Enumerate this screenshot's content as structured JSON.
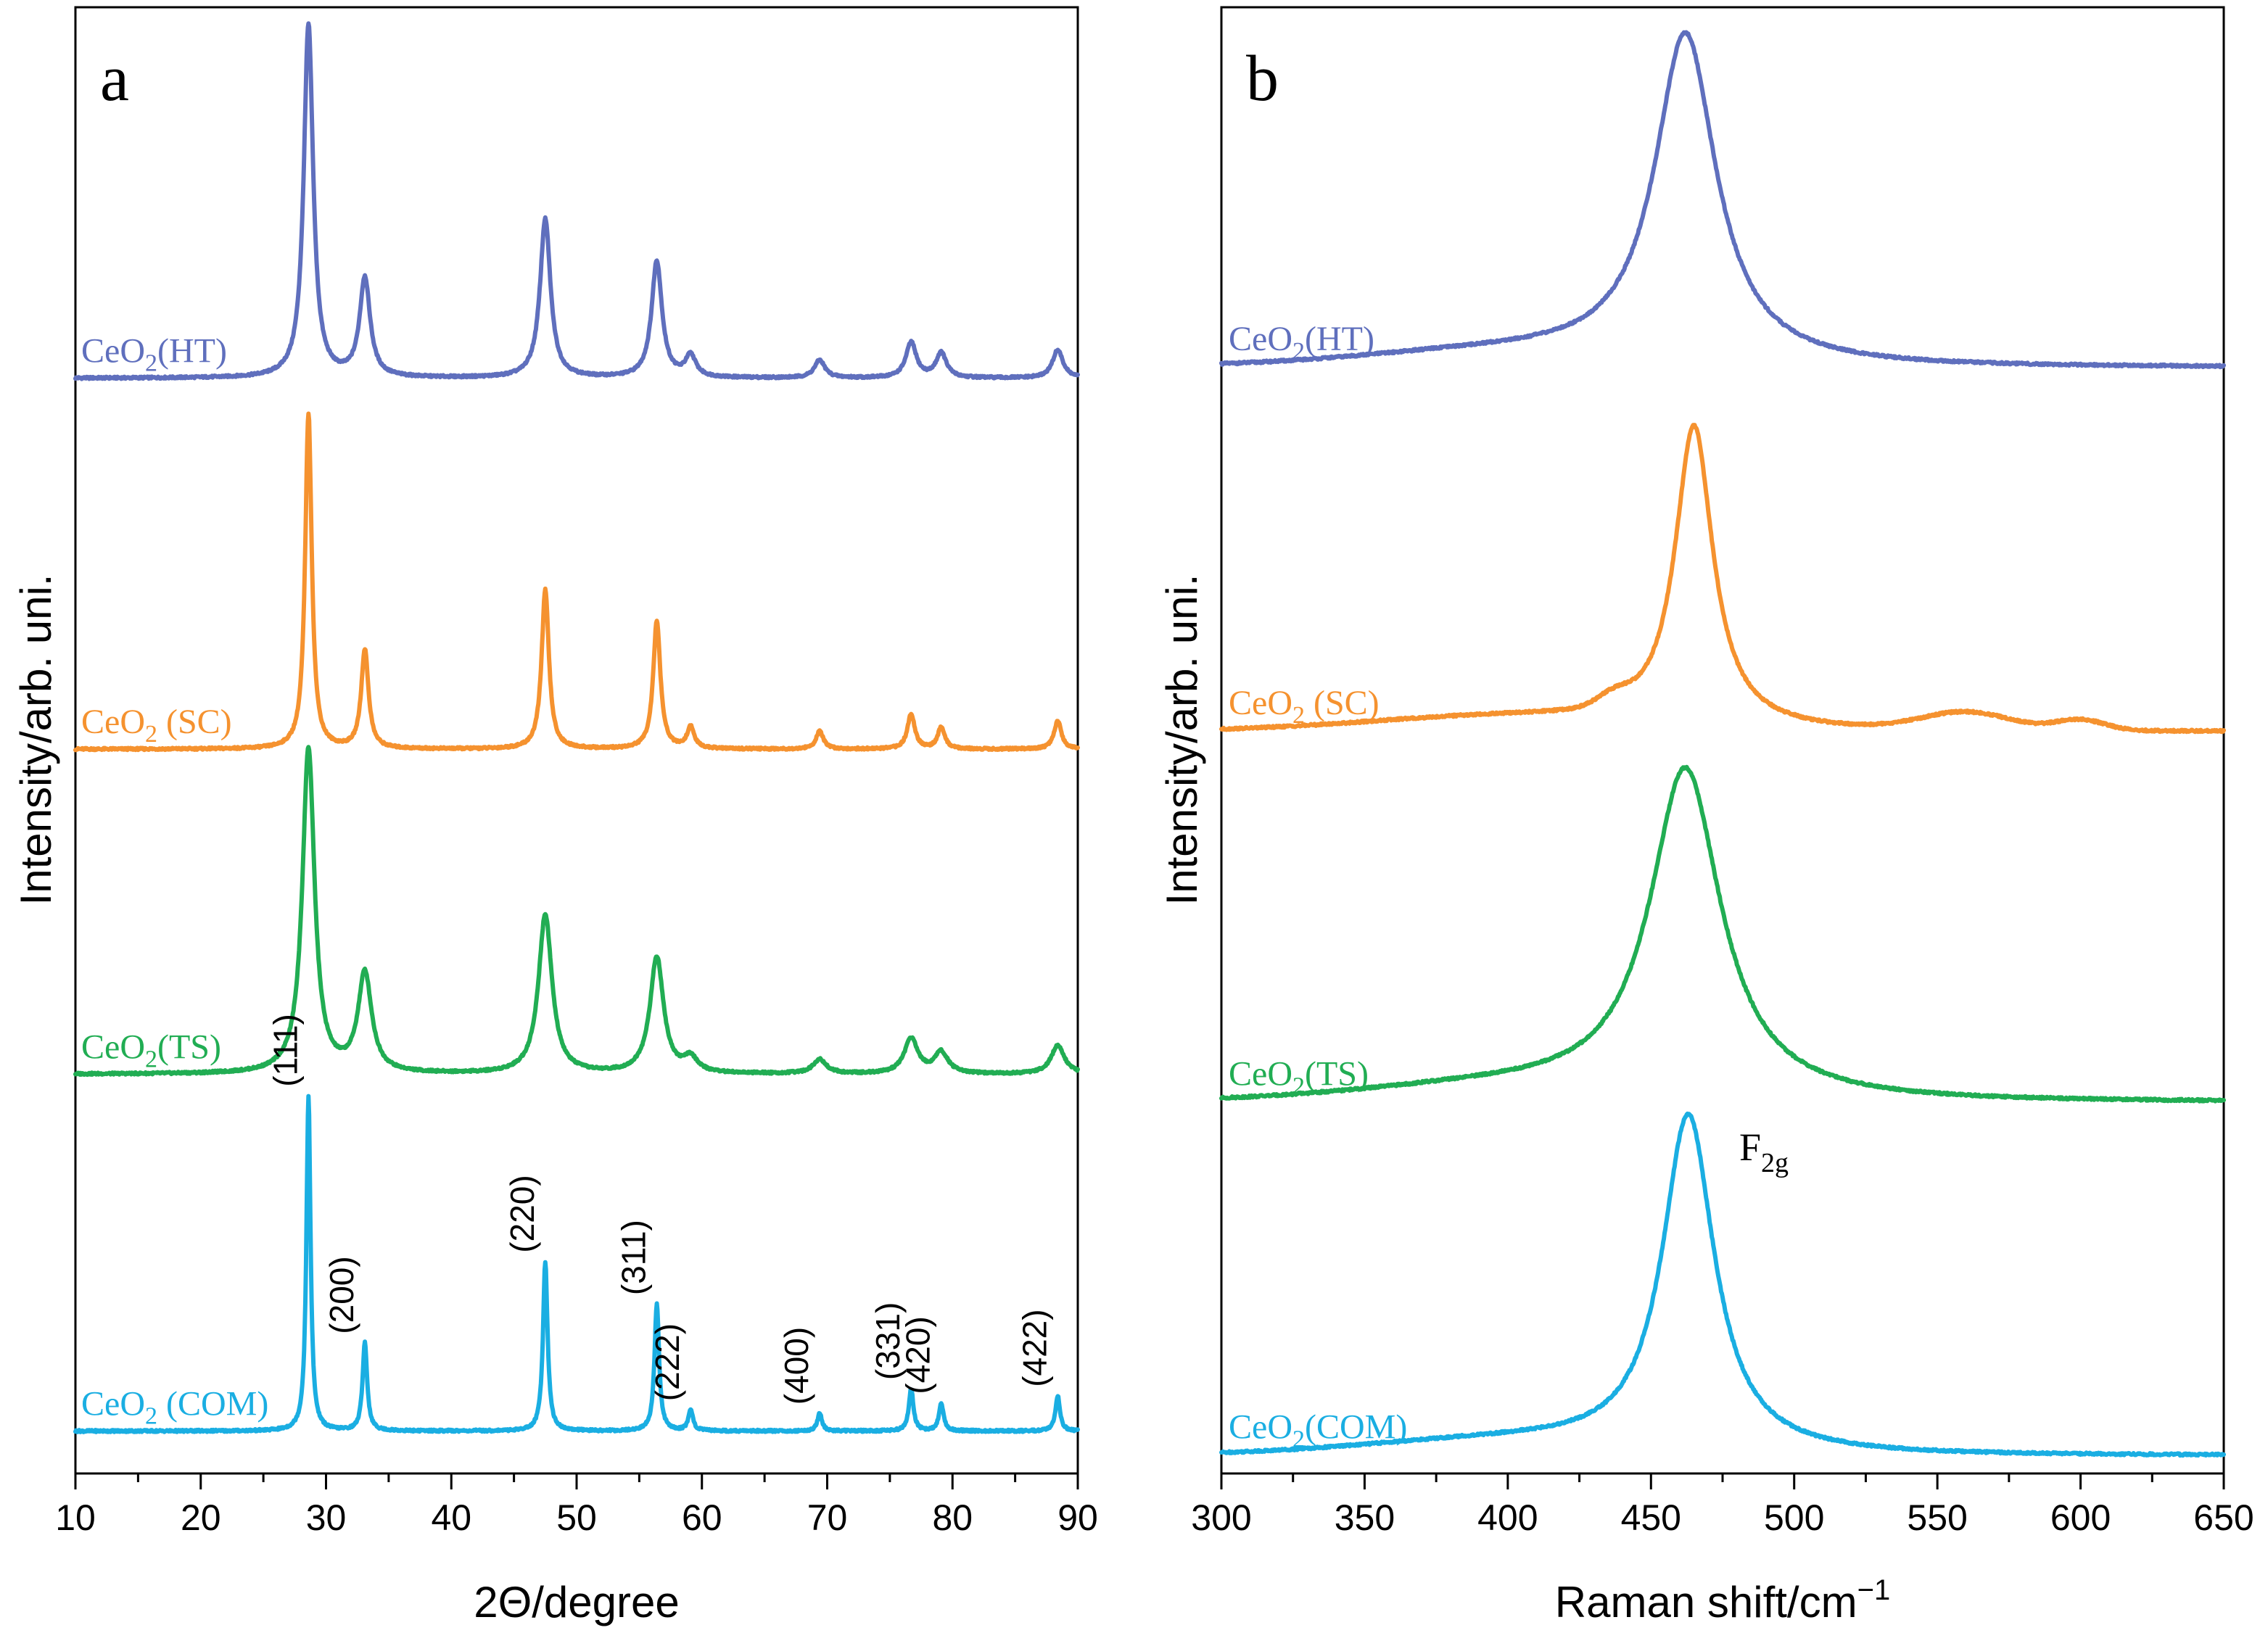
{
  "chart_data": [
    {
      "type": "line",
      "panel_letter": "a",
      "xlabel": "2Θ/degree",
      "ylabel": "Intensity/arb. uni.",
      "xlim": [
        10,
        90
      ],
      "xticks": [
        "10",
        "20",
        "30",
        "40",
        "50",
        "60",
        "70",
        "80",
        "90"
      ],
      "grid": false,
      "peaks": [
        {
          "label": "(111)",
          "x": 28.6
        },
        {
          "label": "(200)",
          "x": 33.1
        },
        {
          "label": "(220)",
          "x": 47.5
        },
        {
          "label": "(311)",
          "x": 56.4
        },
        {
          "label": "(222)",
          "x": 59.1
        },
        {
          "label": "(400)",
          "x": 69.4
        },
        {
          "label": "(331)",
          "x": 76.7
        },
        {
          "label": "(420)",
          "x": 79.1
        },
        {
          "label": "(422)",
          "x": 88.4
        }
      ],
      "series": [
        {
          "name": "CeO",
          "subscript": "2",
          "suffix": "(HT)",
          "color": "#5f6fbd",
          "offset": 3.05,
          "width": 0.5,
          "intensities": [
            1.0,
            0.28,
            0.45,
            0.33,
            0.06,
            0.05,
            0.1,
            0.07,
            0.08
          ]
        },
        {
          "name": "CeO",
          "subscript": "2",
          "suffix": " (SC)",
          "color": "#f5922f",
          "offset": 2.0,
          "width": 0.35,
          "intensities": [
            0.95,
            0.28,
            0.45,
            0.36,
            0.06,
            0.05,
            0.1,
            0.06,
            0.08
          ]
        },
        {
          "name": "CeO",
          "subscript": "2",
          "suffix": "(TS)",
          "color": "#21ad53",
          "offset": 1.08,
          "width": 0.65,
          "intensities": [
            0.92,
            0.28,
            0.45,
            0.33,
            0.04,
            0.04,
            0.1,
            0.06,
            0.08
          ]
        },
        {
          "name": "CeO",
          "subscript": "2",
          "suffix": " (COM)",
          "color": "#1aaee2",
          "offset": 0.07,
          "width": 0.22,
          "intensities": [
            0.95,
            0.25,
            0.48,
            0.36,
            0.06,
            0.05,
            0.12,
            0.08,
            0.1
          ]
        }
      ]
    },
    {
      "type": "line",
      "panel_letter": "b",
      "xlabel": "Raman shift/cm",
      "xlabel_sup": "−1",
      "ylabel": "Intensity/arb. uni.",
      "xlim": [
        300,
        650
      ],
      "xticks": [
        "300",
        "350",
        "400",
        "450",
        "500",
        "550",
        "600",
        "650"
      ],
      "grid": false,
      "annotation": {
        "text": "F",
        "sub": "2g"
      },
      "series": [
        {
          "name": "CeO",
          "subscript": "2",
          "suffix": "(HT)",
          "color": "#5f6fbd",
          "offset": 3.08,
          "center": 462,
          "width": 13,
          "height": 0.93
        },
        {
          "name": "CeO",
          "subscript": "2",
          "suffix": " (SC)",
          "color": "#f5922f",
          "offset": 2.05,
          "center": 465,
          "width": 8,
          "height": 0.85
        },
        {
          "name": "CeO",
          "subscript": "2",
          "suffix": "(TS)",
          "color": "#21ad53",
          "offset": 1.0,
          "center": 462,
          "width": 15,
          "height": 0.93
        },
        {
          "name": "CeO",
          "subscript": "2",
          "suffix": "(COM)",
          "color": "#1aaee2",
          "offset": 0.0,
          "center": 463,
          "width": 11,
          "height": 0.95
        }
      ]
    }
  ]
}
